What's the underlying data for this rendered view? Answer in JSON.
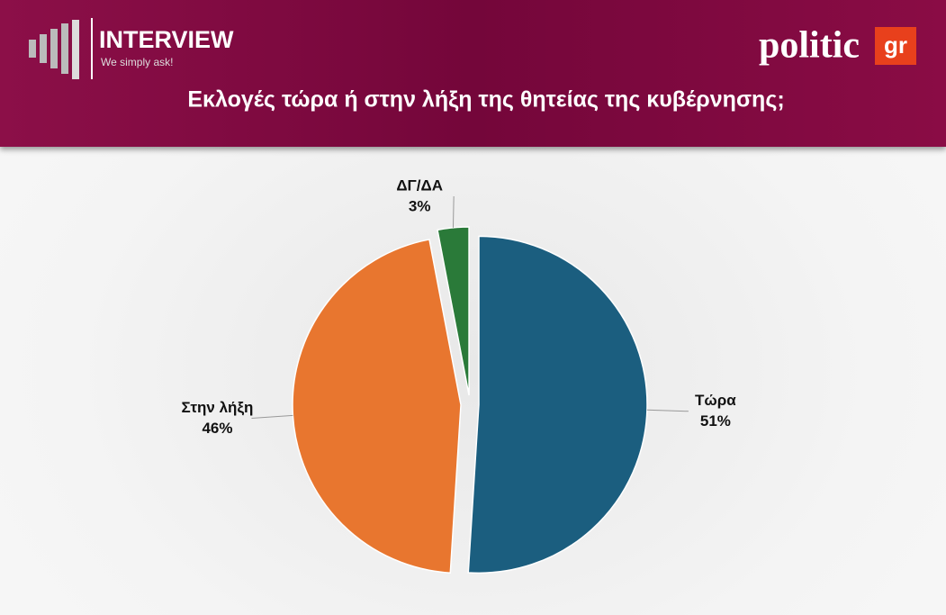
{
  "header": {
    "brand": "INTERVIEW",
    "tagline": "We simply ask!",
    "logo": "politic",
    "logo_suffix": "gr"
  },
  "chart_data": {
    "type": "pie",
    "title": "Εκλογές τώρα ή στην λήξη της θητείας της κυβέρνησης;",
    "categories": [
      "Τώρα",
      "Στην λήξη",
      "ΔΓ/ΔΑ"
    ],
    "values": [
      51,
      46,
      3
    ],
    "value_labels": [
      "51%",
      "46%",
      "3%"
    ],
    "colors": [
      "#1b5e7f",
      "#e8762f",
      "#2a7a39"
    ]
  }
}
